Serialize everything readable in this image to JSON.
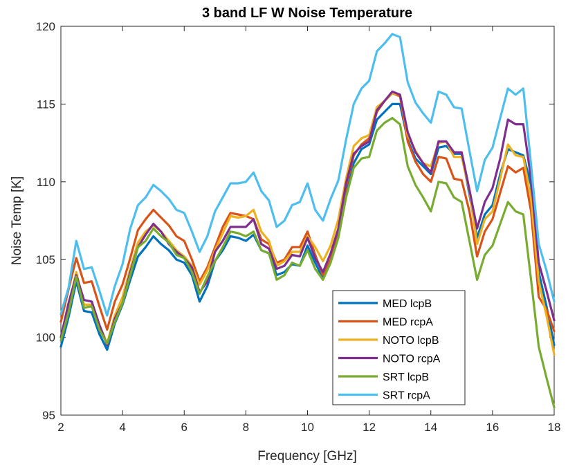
{
  "chart_data": {
    "type": "line",
    "title": "3 band LF W Noise Temperature",
    "xlabel": "Frequency [GHz]",
    "ylabel": "Noise Temp [K]",
    "xlim": [
      2,
      18
    ],
    "ylim": [
      95,
      120
    ],
    "xticks": [
      2,
      4,
      6,
      8,
      10,
      12,
      14,
      16,
      18
    ],
    "yticks": [
      95,
      100,
      105,
      110,
      115,
      120
    ],
    "grid": false,
    "legend_position": "bottom-center",
    "x": [
      2.0,
      2.25,
      2.5,
      2.75,
      3.0,
      3.25,
      3.5,
      3.75,
      4.0,
      4.25,
      4.5,
      4.75,
      5.0,
      5.25,
      5.5,
      5.75,
      6.0,
      6.25,
      6.5,
      6.75,
      7.0,
      7.25,
      7.5,
      7.75,
      8.0,
      8.25,
      8.5,
      8.75,
      9.0,
      9.25,
      9.5,
      9.75,
      10.0,
      10.25,
      10.5,
      10.75,
      11.0,
      11.25,
      11.5,
      11.75,
      12.0,
      12.25,
      12.5,
      12.75,
      13.0,
      13.25,
      13.5,
      13.75,
      14.0,
      14.25,
      14.5,
      14.75,
      15.0,
      15.25,
      15.5,
      15.75,
      16.0,
      16.25,
      16.5,
      16.75,
      17.0,
      17.25,
      17.5,
      17.75,
      18.0
    ],
    "series": [
      {
        "name": "MED lcpB",
        "color": "#0072BD",
        "values": [
          99.4,
          101.3,
          103.6,
          101.7,
          101.6,
          100.2,
          99.2,
          100.9,
          102.1,
          103.7,
          105.2,
          105.8,
          106.5,
          106.0,
          105.6,
          105.0,
          104.8,
          104.0,
          102.3,
          103.3,
          104.9,
          105.6,
          106.5,
          106.4,
          106.2,
          106.6,
          105.6,
          105.4,
          104.0,
          104.2,
          104.7,
          104.6,
          105.9,
          104.8,
          103.8,
          104.9,
          106.6,
          109.4,
          111.2,
          112.1,
          112.4,
          114.0,
          114.5,
          115.0,
          115.0,
          112.7,
          111.5,
          111.0,
          110.5,
          112.2,
          112.3,
          111.8,
          111.8,
          109.2,
          106.4,
          107.9,
          108.5,
          110.5,
          112.1,
          111.9,
          111.7,
          109.8,
          104.2,
          102.0,
          99.5
        ]
      },
      {
        "name": "MED rcpA",
        "color": "#D95319",
        "values": [
          101.0,
          103.1,
          105.1,
          103.5,
          103.6,
          102.0,
          100.5,
          102.3,
          103.4,
          105.1,
          106.9,
          107.6,
          108.2,
          107.7,
          107.2,
          106.5,
          106.2,
          105.0,
          103.6,
          104.5,
          105.8,
          107.1,
          108.0,
          107.9,
          107.8,
          107.6,
          106.3,
          106.0,
          104.8,
          105.0,
          105.8,
          105.8,
          106.8,
          105.3,
          104.0,
          105.0,
          106.7,
          109.7,
          111.7,
          112.4,
          112.8,
          114.5,
          115.2,
          115.7,
          115.5,
          112.6,
          111.3,
          110.5,
          110.0,
          111.6,
          111.5,
          110.2,
          110.1,
          108.1,
          105.2,
          106.8,
          107.6,
          109.3,
          111.0,
          110.6,
          110.9,
          108.1,
          102.6,
          101.8,
          100.4
        ]
      },
      {
        "name": "NOTO lcpB",
        "color": "#EDB120",
        "values": [
          100.0,
          102.0,
          104.2,
          102.1,
          102.1,
          100.8,
          99.6,
          101.4,
          102.6,
          104.4,
          106.1,
          106.8,
          107.2,
          106.8,
          106.2,
          105.6,
          105.2,
          104.6,
          103.4,
          104.3,
          105.6,
          106.7,
          107.8,
          107.7,
          107.8,
          108.2,
          106.8,
          106.2,
          104.6,
          104.9,
          105.5,
          105.5,
          106.5,
          105.8,
          104.9,
          105.9,
          107.6,
          110.2,
          112.3,
          112.8,
          113.0,
          114.8,
          115.2,
          115.7,
          115.6,
          113.0,
          112.0,
          111.2,
          111.0,
          112.5,
          112.6,
          111.6,
          111.6,
          109.4,
          106.0,
          107.6,
          108.1,
          110.2,
          112.4,
          111.7,
          111.6,
          108.9,
          103.6,
          101.4,
          98.9
        ]
      },
      {
        "name": "NOTO rcpA",
        "color": "#7E2F8E",
        "values": [
          100.0,
          102.2,
          104.0,
          102.4,
          102.3,
          100.8,
          99.5,
          101.2,
          102.2,
          104.2,
          105.8,
          106.6,
          107.3,
          106.8,
          106.0,
          105.5,
          105.1,
          104.5,
          102.9,
          103.6,
          105.5,
          106.2,
          107.1,
          107.1,
          107.1,
          107.6,
          106.0,
          105.7,
          104.4,
          104.6,
          105.3,
          105.2,
          106.4,
          105.1,
          104.2,
          105.4,
          107.0,
          109.9,
          111.8,
          112.3,
          112.6,
          114.6,
          115.2,
          115.8,
          115.6,
          113.2,
          111.9,
          111.2,
          110.6,
          112.6,
          112.6,
          111.9,
          111.9,
          109.5,
          107.0,
          108.7,
          109.6,
          111.5,
          114.0,
          113.7,
          113.7,
          110.2,
          104.8,
          103.0,
          101.1
        ]
      },
      {
        "name": "SRT lcpB",
        "color": "#77AC30",
        "values": [
          99.8,
          101.6,
          103.9,
          101.9,
          102.0,
          100.5,
          99.6,
          101.0,
          102.2,
          104.0,
          105.8,
          106.2,
          107.0,
          106.5,
          106.1,
          105.3,
          105.1,
          104.2,
          102.8,
          103.9,
          104.9,
          105.8,
          106.8,
          106.7,
          106.5,
          106.8,
          105.6,
          105.4,
          103.7,
          104.0,
          104.8,
          104.6,
          105.6,
          104.4,
          103.7,
          104.8,
          106.4,
          109.0,
          110.9,
          111.5,
          111.6,
          113.3,
          113.8,
          114.1,
          113.7,
          111.0,
          109.8,
          109.0,
          108.1,
          110.0,
          109.9,
          109.0,
          108.7,
          106.2,
          103.7,
          105.3,
          105.9,
          107.3,
          108.7,
          108.1,
          107.9,
          103.7,
          99.4,
          97.4,
          95.5
        ]
      },
      {
        "name": "SRT rcpA",
        "color": "#4DBEEE",
        "values": [
          101.5,
          103.2,
          106.2,
          104.4,
          104.5,
          103.0,
          101.4,
          103.3,
          104.7,
          107.0,
          108.5,
          109.0,
          109.8,
          109.4,
          108.9,
          108.2,
          108.0,
          106.8,
          105.5,
          106.5,
          108.1,
          109.0,
          109.9,
          109.9,
          110.0,
          110.6,
          109.4,
          108.8,
          107.1,
          107.5,
          108.5,
          108.7,
          109.9,
          108.2,
          107.5,
          108.9,
          110.1,
          112.7,
          115.0,
          116.0,
          116.5,
          118.4,
          118.9,
          119.5,
          119.3,
          116.4,
          115.1,
          114.4,
          113.8,
          115.8,
          115.6,
          114.8,
          114.7,
          112.0,
          109.4,
          111.4,
          112.2,
          114.1,
          116.0,
          115.6,
          116.0,
          111.1,
          106.0,
          104.3,
          102.3
        ]
      }
    ]
  }
}
